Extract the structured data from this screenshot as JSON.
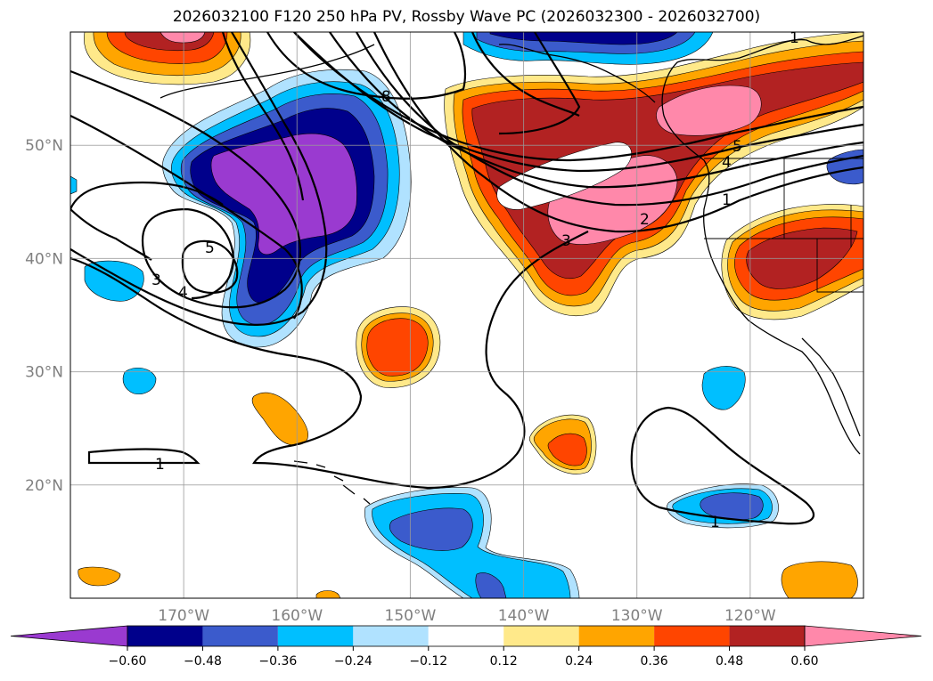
{
  "title": "2026032100 F120 250 hPa PV, Rossby Wave PC (2026032300 - 2026032700)",
  "map": {
    "lon_range": [
      -180,
      -110
    ],
    "lat_range": [
      10,
      60
    ],
    "lat_ticks": [
      {
        "value": 50,
        "label": "50°N"
      },
      {
        "value": 40,
        "label": "40°N"
      },
      {
        "value": 30,
        "label": "30°N"
      },
      {
        "value": 20,
        "label": "20°N"
      }
    ],
    "lon_ticks": [
      {
        "value": -170,
        "label": "170°W"
      },
      {
        "value": -160,
        "label": "160°W"
      },
      {
        "value": -150,
        "label": "150°W"
      },
      {
        "value": -140,
        "label": "140°W"
      },
      {
        "value": -130,
        "label": "130°W"
      },
      {
        "value": -120,
        "label": "120°W"
      }
    ],
    "grid": true
  },
  "contour_labels": [
    "8",
    "5",
    "4",
    "3",
    "2",
    "1",
    "1",
    "5",
    "4",
    "3",
    "1",
    "1"
  ],
  "colorbar": {
    "colors": [
      "#9a3ad0",
      "#00008b",
      "#3b5bcc",
      "#00bfff",
      "#b0e2ff",
      "#ffffff",
      "#ffe98a",
      "#ffa500",
      "#ff4500",
      "#b22222",
      "#ff88aa"
    ],
    "labels": [
      "−0.60",
      "−0.48",
      "−0.36",
      "−0.24",
      "−0.12",
      "0.12",
      "0.24",
      "0.36",
      "0.48",
      "0.60"
    ],
    "extend": "both"
  }
}
